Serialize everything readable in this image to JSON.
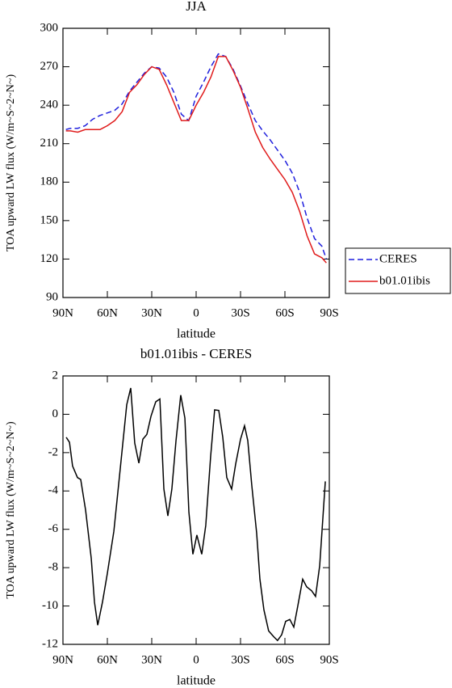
{
  "chart_data": [
    {
      "type": "line",
      "title": "JJA",
      "xlabel": "latitude",
      "ylabel": "TOA upward LW flux (W/m~S~2~N~)",
      "x": [
        88,
        85,
        80,
        75,
        70,
        65,
        60,
        55,
        50,
        45,
        40,
        35,
        30,
        25,
        20,
        15,
        10,
        5,
        0,
        -5,
        -10,
        -15,
        -20,
        -25,
        -30,
        -35,
        -40,
        -45,
        -50,
        -55,
        -60,
        -65,
        -70,
        -75,
        -80,
        -85,
        -88
      ],
      "series": [
        {
          "name": "CERES",
          "color": "#1f1fdd",
          "line_style": "dashed",
          "values": [
            221,
            222,
            222,
            224,
            229,
            232,
            234,
            236,
            241,
            251,
            258,
            265,
            270,
            269,
            262,
            250,
            233,
            228,
            247,
            258,
            270,
            280,
            278,
            268,
            255,
            241,
            228,
            220,
            213,
            205,
            197,
            187,
            172,
            152,
            136,
            130,
            120
          ]
        },
        {
          "name": "b01.01ibis",
          "color": "#e01b1b",
          "line_style": "solid",
          "values": [
            220,
            220,
            219,
            221,
            221,
            221,
            224,
            228,
            235,
            250,
            256,
            264,
            270,
            268,
            256,
            242,
            228,
            228,
            240,
            250,
            262,
            278,
            278,
            267,
            254,
            237,
            219,
            207,
            198,
            190,
            182,
            172,
            157,
            138,
            124,
            121,
            117
          ]
        }
      ],
      "xlim": [
        90,
        -90
      ],
      "xticks": [
        {
          "value": 90,
          "label": "90N"
        },
        {
          "value": 60,
          "label": "60N"
        },
        {
          "value": 30,
          "label": "30N"
        },
        0,
        {
          "value": -30,
          "label": "30S"
        },
        {
          "value": -60,
          "label": "60S"
        },
        {
          "value": -90,
          "label": "90S"
        }
      ],
      "ylim": [
        90,
        300
      ],
      "yticks": [
        90,
        120,
        150,
        180,
        210,
        240,
        270,
        300
      ],
      "legend": "right"
    },
    {
      "type": "line",
      "title": "b01.01ibis - CERES",
      "xlabel": "latitude",
      "ylabel": "TOA upward LW flux (W/m~S~2~N~)",
      "x": [
        87.8,
        85.6,
        83.5,
        80.2,
        78,
        74.7,
        70.9,
        68.7,
        66.5,
        63.3,
        60,
        55.6,
        51.3,
        46.9,
        44.2,
        41.5,
        38.7,
        36,
        33.3,
        30.5,
        27.3,
        24.5,
        21.8,
        19.1,
        16.4,
        13.6,
        10.4,
        7.6,
        4.9,
        2.2,
        -0.5,
        -3.8,
        -6.5,
        -9.8,
        -12.5,
        -15.3,
        -18,
        -20.7,
        -24,
        -26.7,
        -30,
        -32.7,
        -34.9,
        -37.6,
        -40.9,
        -43.1,
        -45.8,
        -49,
        -52.4,
        -55,
        -57.8,
        -60.5,
        -63.3,
        -66,
        -68.7,
        -72,
        -74.7,
        -78,
        -80.7,
        -83.5,
        -87.3
      ],
      "values": [
        -1.2,
        -1.46,
        -2.7,
        -3.3,
        -3.4,
        -5.0,
        -7.5,
        -9.8,
        -11.0,
        -9.8,
        -8.3,
        -6.1,
        -2.85,
        0.5,
        1.37,
        -1.5,
        -2.55,
        -1.3,
        -1.05,
        -0.1,
        0.65,
        0.8,
        -3.9,
        -5.3,
        -3.9,
        -1.37,
        1.0,
        -0.2,
        -5.1,
        -7.3,
        -6.3,
        -7.3,
        -5.8,
        -2.2,
        0.23,
        0.2,
        -1.2,
        -3.3,
        -3.9,
        -2.6,
        -1.3,
        -0.6,
        -1.37,
        -3.7,
        -6.2,
        -8.6,
        -10.2,
        -11.3,
        -11.6,
        -11.8,
        -11.5,
        -10.8,
        -10.7,
        -11.1,
        -10.0,
        -8.6,
        -9.0,
        -9.2,
        -9.5,
        -7.9,
        -3.5
      ],
      "color": "#000000",
      "xlim": [
        90,
        -90
      ],
      "xticks": [
        {
          "value": 90,
          "label": "90N"
        },
        {
          "value": 60,
          "label": "60N"
        },
        {
          "value": 30,
          "label": "30N"
        },
        0,
        {
          "value": -30,
          "label": "30S"
        },
        {
          "value": -60,
          "label": "60S"
        },
        {
          "value": -90,
          "label": "90S"
        }
      ],
      "ylim": [
        -12,
        2
      ],
      "yticks": [
        -12,
        -10,
        -8,
        -6,
        -4,
        -2,
        0,
        2
      ]
    }
  ]
}
